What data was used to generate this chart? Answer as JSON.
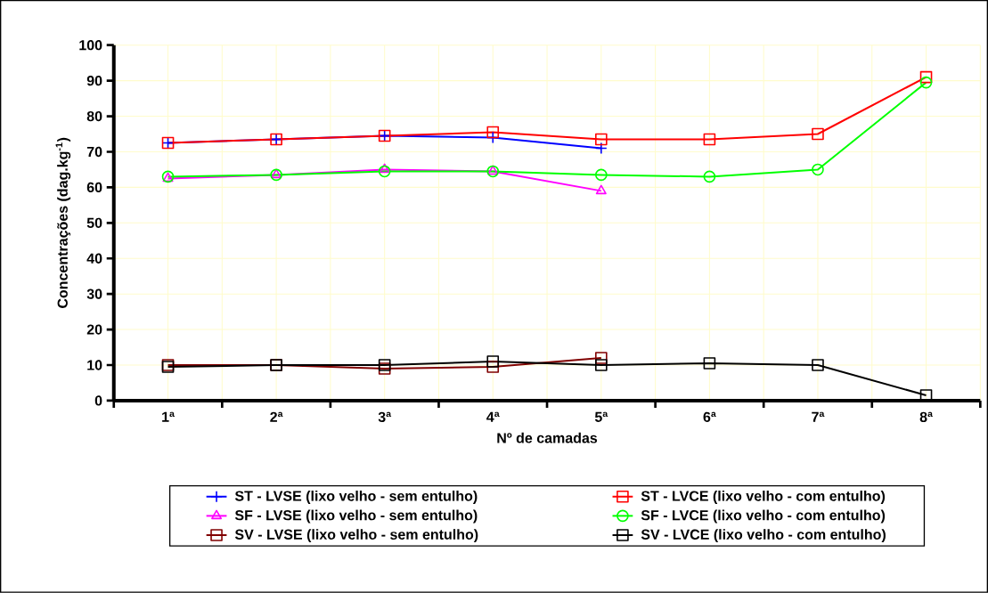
{
  "chart_data": {
    "type": "line",
    "xlabel": "Nº de camadas",
    "ylabel": "Concentrações (dag.kg$^{-1}$)",
    "categories": [
      "1ª",
      "2ª",
      "3ª",
      "4ª",
      "5ª",
      "6ª",
      "7ª",
      "8ª"
    ],
    "ylim": [
      0,
      100
    ],
    "yticks": [
      0,
      10,
      20,
      30,
      40,
      50,
      60,
      70,
      80,
      90,
      100
    ],
    "grid": true,
    "legend": "bottom",
    "series": [
      {
        "name": "ST - LVSE (lixo velho - sem entulho)",
        "color": "#0000ff",
        "marker": "cross",
        "values": [
          72.5,
          73.5,
          74.5,
          74,
          71,
          null,
          null,
          null
        ]
      },
      {
        "name": "ST - LVCE (lixo velho - com entulho)",
        "color": "#ff0000",
        "marker": "square",
        "values": [
          72.5,
          73.5,
          74.5,
          75.5,
          73.5,
          73.5,
          75,
          91
        ]
      },
      {
        "name": "SF - LVSE (lixo velho - sem entulho)",
        "color": "#ff00ff",
        "marker": "triangle",
        "values": [
          62.5,
          63.5,
          65,
          64.5,
          59,
          null,
          null,
          null
        ]
      },
      {
        "name": "SF - LVCE (lixo velho - com entulho)",
        "color": "#00ff00",
        "marker": "circle",
        "values": [
          63,
          63.5,
          64.5,
          64.5,
          63.5,
          63,
          65,
          89.5
        ]
      },
      {
        "name": "SV - LVSE (lixo velho - sem entulho)",
        "color": "#800000",
        "marker": "square",
        "values": [
          10,
          10,
          9,
          9.5,
          12,
          null,
          null,
          null
        ]
      },
      {
        "name": "SV - LVCE (lixo velho - com entulho)",
        "color": "#000000",
        "marker": "square",
        "values": [
          9.5,
          10,
          10,
          11,
          10,
          10.5,
          10,
          1.5
        ]
      }
    ]
  }
}
